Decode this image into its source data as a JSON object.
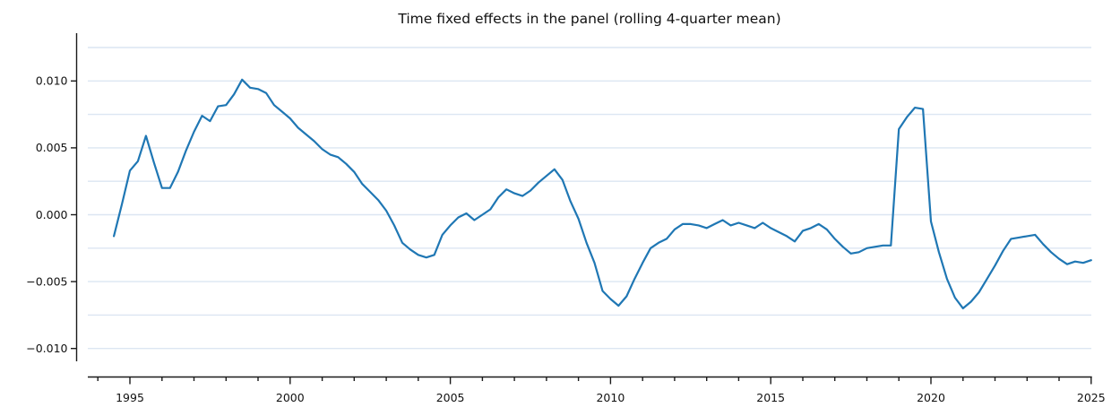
{
  "chart_data": {
    "type": "line",
    "title": "Time fixed effects in the panel (rolling 4-quarter mean)",
    "xlabel": "",
    "ylabel": "",
    "xlim": [
      1993.7,
      2025.05
    ],
    "ylim": [
      -0.0121,
      0.0136
    ],
    "grid": true,
    "grid_color": "#dce6f2",
    "grid_step": 0.0025,
    "grid_range": [
      -0.01,
      0.0125
    ],
    "legend_position": "none",
    "line_color": "#1f77b4",
    "x_ticks_major": [
      1995,
      2000,
      2005,
      2010,
      2015,
      2020,
      2025
    ],
    "x_tick_labels": [
      "1995",
      "2000",
      "2005",
      "2010",
      "2015",
      "2020",
      "2025"
    ],
    "x_minor_tick_years": [
      1994,
      2024
    ],
    "y_ticks": [
      -0.01,
      -0.005,
      0.0,
      0.005,
      0.01
    ],
    "y_tick_labels": [
      "−0.010",
      "−0.005",
      "0.000",
      "0.005",
      "0.010"
    ],
    "x": [
      1994.5,
      1994.75,
      1995.0,
      1995.25,
      1995.5,
      1995.75,
      1996.0,
      1996.25,
      1996.5,
      1996.75,
      1997.0,
      1997.25,
      1997.5,
      1997.75,
      1998.0,
      1998.25,
      1998.5,
      1998.75,
      1999.0,
      1999.25,
      1999.5,
      1999.75,
      2000.0,
      2000.25,
      2000.5,
      2000.75,
      2001.0,
      2001.25,
      2001.5,
      2001.75,
      2002.0,
      2002.25,
      2002.5,
      2002.75,
      2003.0,
      2003.25,
      2003.5,
      2003.75,
      2004.0,
      2004.25,
      2004.5,
      2004.75,
      2005.0,
      2005.25,
      2005.5,
      2005.75,
      2006.0,
      2006.25,
      2006.5,
      2006.75,
      2007.0,
      2007.25,
      2007.5,
      2007.75,
      2008.0,
      2008.25,
      2008.5,
      2008.75,
      2009.0,
      2009.25,
      2009.5,
      2009.75,
      2010.0,
      2010.25,
      2010.5,
      2010.75,
      2011.0,
      2011.25,
      2011.5,
      2011.75,
      2012.0,
      2012.25,
      2012.5,
      2012.75,
      2013.0,
      2013.25,
      2013.5,
      2013.75,
      2014.0,
      2014.25,
      2014.5,
      2014.75,
      2015.0,
      2015.25,
      2015.5,
      2015.75,
      2016.0,
      2016.25,
      2016.5,
      2016.75,
      2017.0,
      2017.25,
      2017.5,
      2017.75,
      2018.0,
      2018.25,
      2018.5,
      2018.75,
      2019.0,
      2019.25,
      2019.5,
      2019.75,
      2020.0,
      2020.25,
      2020.5,
      2020.75,
      2021.0,
      2021.25,
      2021.5,
      2021.75,
      2022.0,
      2022.25,
      2022.5,
      2022.75,
      2023.0,
      2023.25,
      2023.5,
      2023.75,
      2024.0,
      2024.25,
      2024.5,
      2024.75,
      2025.0
    ],
    "values": [
      -0.0016,
      0.0008,
      0.0033,
      0.004,
      0.0059,
      0.0039,
      0.002,
      0.002,
      0.0032,
      0.0048,
      0.0062,
      0.0074,
      0.007,
      0.0081,
      0.0082,
      0.009,
      0.0101,
      0.0095,
      0.0094,
      0.0091,
      0.0082,
      0.0077,
      0.0072,
      0.0065,
      0.006,
      0.0055,
      0.0049,
      0.0045,
      0.0043,
      0.0038,
      0.0032,
      0.0023,
      0.0017,
      0.0011,
      0.0003,
      -0.0008,
      -0.0021,
      -0.0026,
      -0.003,
      -0.0032,
      -0.003,
      -0.0015,
      -0.0008,
      -0.0002,
      0.0001,
      -0.0004,
      0.0,
      0.0004,
      0.0013,
      0.0019,
      0.0016,
      0.0014,
      0.0018,
      0.0024,
      0.0029,
      0.0034,
      0.0026,
      0.001,
      -0.0003,
      -0.0021,
      -0.0036,
      -0.0057,
      -0.0063,
      -0.0068,
      -0.0061,
      -0.0048,
      -0.0036,
      -0.0025,
      -0.0021,
      -0.0018,
      -0.0011,
      -0.0007,
      -0.0007,
      -0.0008,
      -0.001,
      -0.0007,
      -0.0004,
      -0.0008,
      -0.0006,
      -0.0008,
      -0.001,
      -0.0006,
      -0.001,
      -0.0013,
      -0.0016,
      -0.002,
      -0.0012,
      -0.001,
      -0.0007,
      -0.0011,
      -0.0018,
      -0.0024,
      -0.0029,
      -0.0028,
      -0.0025,
      -0.0024,
      -0.0023,
      -0.0023,
      0.0064,
      0.0073,
      0.008,
      0.0079,
      -0.0005,
      -0.0028,
      -0.0048,
      -0.0062,
      -0.007,
      -0.0065,
      -0.0058,
      -0.0048,
      -0.0038,
      -0.0027,
      -0.0018,
      -0.0017,
      -0.0016,
      -0.0015,
      -0.0022,
      -0.0028,
      -0.0033,
      -0.0037,
      -0.0035,
      -0.0036,
      -0.0034
    ]
  }
}
